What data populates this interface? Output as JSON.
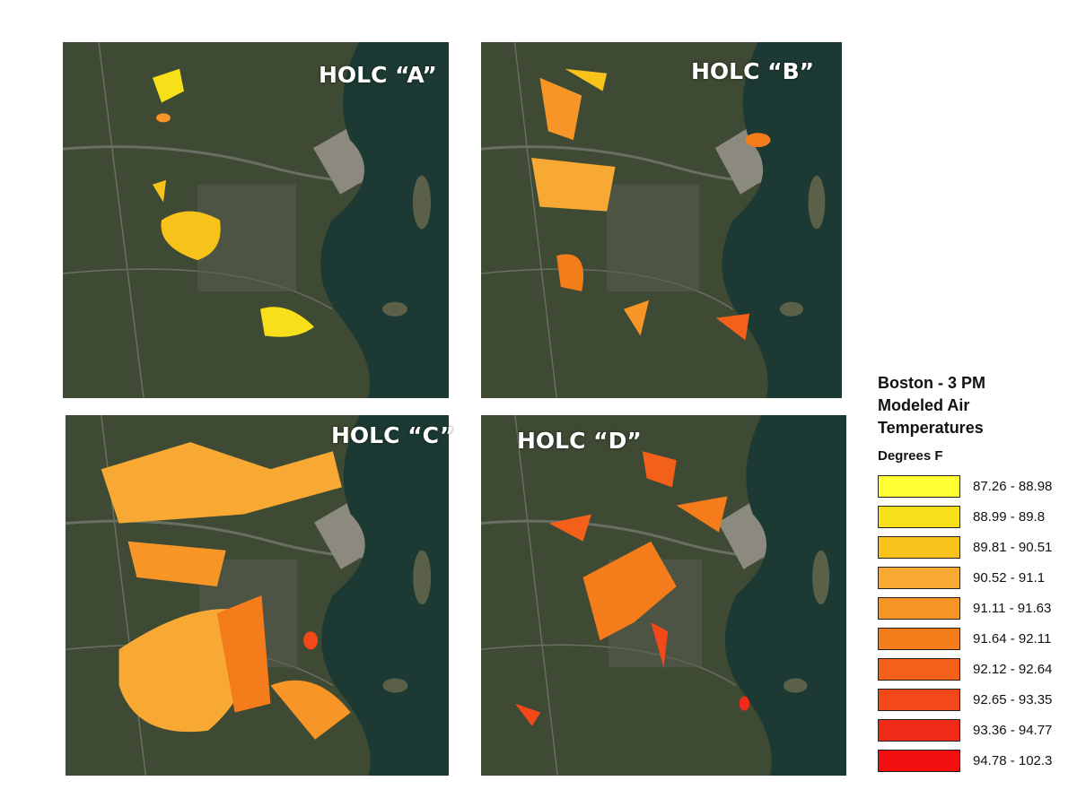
{
  "panels": [
    {
      "label": "HOLC “A”"
    },
    {
      "label": "HOLC “B”"
    },
    {
      "label": "HOLC “C”"
    },
    {
      "label": "HOLC “D”"
    }
  ],
  "legend": {
    "title": "Boston - 3 PM Modeled Air Temperatures",
    "subtitle": "Degrees F",
    "entries": [
      {
        "label": "87.26 - 88.98",
        "color": "#ffff33"
      },
      {
        "label": "88.99 - 89.8",
        "color": "#f7e01a"
      },
      {
        "label": "89.81 - 90.51",
        "color": "#f7c21a"
      },
      {
        "label": "90.52 - 91.1",
        "color": "#f7a933"
      },
      {
        "label": "91.11 - 91.63",
        "color": "#f79526"
      },
      {
        "label": "91.64 - 92.11",
        "color": "#f57c1a"
      },
      {
        "label": "92.12 - 92.64",
        "color": "#f2601a"
      },
      {
        "label": "92.65 - 93.35",
        "color": "#f2481a"
      },
      {
        "label": "93.36 - 94.77",
        "color": "#f22a1a"
      },
      {
        "label": "94.78 - 102.3",
        "color": "#f20f0f"
      }
    ]
  }
}
